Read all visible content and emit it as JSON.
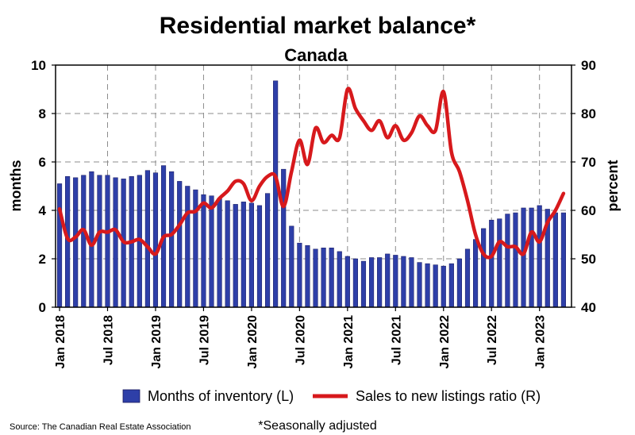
{
  "chart_data": {
    "type": "bar",
    "title": "Residential market balance*",
    "subtitle": "Canada",
    "y_left": {
      "label": "months",
      "ylim": [
        0,
        10
      ],
      "ticks": [
        "0",
        "2",
        "4",
        "6",
        "8",
        "10"
      ]
    },
    "y_right": {
      "label": "percent",
      "ylim": [
        40,
        90
      ],
      "ticks": [
        "40",
        "50",
        "60",
        "70",
        "80",
        "90"
      ]
    },
    "x_ticks": [
      {
        "index": 0,
        "label": "Jan 2018"
      },
      {
        "index": 6,
        "label": "Jul 2018"
      },
      {
        "index": 12,
        "label": "Jan 2019"
      },
      {
        "index": 18,
        "label": "Jul 2019"
      },
      {
        "index": 24,
        "label": "Jan 2020"
      },
      {
        "index": 30,
        "label": "Jul 2020"
      },
      {
        "index": 36,
        "label": "Jan 2021"
      },
      {
        "index": 42,
        "label": "Jul 2021"
      },
      {
        "index": 48,
        "label": "Jan 2022"
      },
      {
        "index": 54,
        "label": "Jul 2022"
      },
      {
        "index": 60,
        "label": "Jan 2023"
      }
    ],
    "months": [
      "2018-01",
      "2018-02",
      "2018-03",
      "2018-04",
      "2018-05",
      "2018-06",
      "2018-07",
      "2018-08",
      "2018-09",
      "2018-10",
      "2018-11",
      "2018-12",
      "2019-01",
      "2019-02",
      "2019-03",
      "2019-04",
      "2019-05",
      "2019-06",
      "2019-07",
      "2019-08",
      "2019-09",
      "2019-10",
      "2019-11",
      "2019-12",
      "2020-01",
      "2020-02",
      "2020-03",
      "2020-04",
      "2020-05",
      "2020-06",
      "2020-07",
      "2020-08",
      "2020-09",
      "2020-10",
      "2020-11",
      "2020-12",
      "2021-01",
      "2021-02",
      "2021-03",
      "2021-04",
      "2021-05",
      "2021-06",
      "2021-07",
      "2021-08",
      "2021-09",
      "2021-10",
      "2021-11",
      "2021-12",
      "2022-01",
      "2022-02",
      "2022-03",
      "2022-04",
      "2022-05",
      "2022-06",
      "2022-07",
      "2022-08",
      "2022-09",
      "2022-10",
      "2022-11",
      "2022-12",
      "2023-01",
      "2023-02",
      "2023-03",
      "2023-04"
    ],
    "series": [
      {
        "name": "Months of inventory (L)",
        "axis": "left",
        "kind": "bar",
        "color": "#2E3FA8",
        "values": [
          5.1,
          5.4,
          5.35,
          5.45,
          5.6,
          5.45,
          5.45,
          5.35,
          5.3,
          5.4,
          5.45,
          5.65,
          5.55,
          5.85,
          5.6,
          5.2,
          5.0,
          4.85,
          4.65,
          4.6,
          4.5,
          4.4,
          4.25,
          4.35,
          4.3,
          4.2,
          4.7,
          9.35,
          5.7,
          3.35,
          2.65,
          2.55,
          2.4,
          2.45,
          2.45,
          2.3,
          2.1,
          2.0,
          1.9,
          2.05,
          2.05,
          2.2,
          2.15,
          2.1,
          2.05,
          1.85,
          1.8,
          1.75,
          1.7,
          1.8,
          2.0,
          2.4,
          2.8,
          3.25,
          3.6,
          3.65,
          3.85,
          3.9,
          4.1,
          4.1,
          4.2,
          4.05,
          3.9,
          3.9
        ]
      },
      {
        "name": "Sales to new listings ratio (R)",
        "axis": "right",
        "kind": "line",
        "color": "#D7191C",
        "values": [
          60.3,
          54.2,
          54.5,
          56.0,
          52.8,
          55.5,
          55.5,
          56.0,
          53.5,
          53.5,
          54.0,
          52.5,
          51.0,
          54.5,
          55.0,
          57.0,
          59.5,
          59.8,
          61.5,
          60.5,
          62.5,
          64.0,
          66.0,
          65.5,
          62.0,
          65.0,
          67.0,
          67.0,
          60.8,
          68.0,
          74.5,
          69.5,
          77.0,
          74.0,
          75.5,
          75.0,
          85.0,
          81.0,
          78.5,
          76.5,
          78.5,
          75.0,
          77.5,
          74.5,
          76.0,
          79.5,
          77.5,
          76.5,
          84.5,
          72.0,
          68.0,
          62.0,
          55.0,
          51.0,
          50.5,
          53.5,
          52.5,
          52.5,
          51.0,
          55.5,
          53.5,
          57.5,
          60.0,
          63.5
        ]
      }
    ],
    "grid": true,
    "legend_position": "bottom"
  },
  "source": "Source: The Canadian Real Estate Association",
  "footnote": "*Seasonally adjusted"
}
